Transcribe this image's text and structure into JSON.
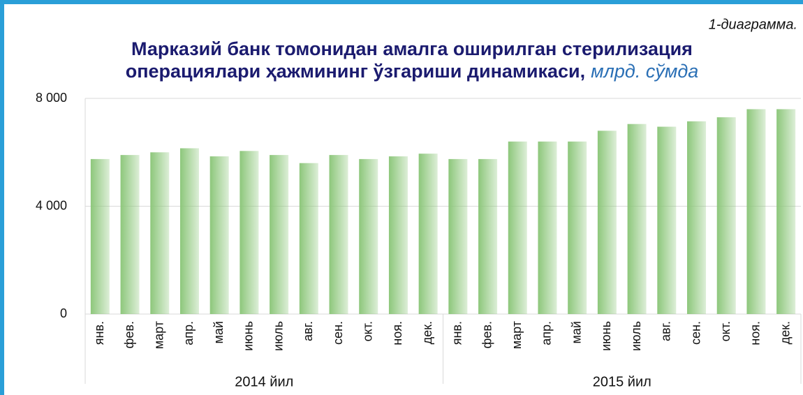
{
  "chart_data": {
    "type": "bar",
    "caption": "1-диаграмма.",
    "title": [
      "Марказий банк томонидан амалга оширилган стерилизация",
      "операциялари ҳажмининг ўзгариши динамикаси,"
    ],
    "unit": "млрд. сўмда",
    "categories": [
      "янв.",
      "фев.",
      "март",
      "апр.",
      "май",
      "июнь",
      "июль",
      "авг.",
      "сен.",
      "окт.",
      "ноя.",
      "дек.",
      "янв.",
      "фев.",
      "март",
      "апр.",
      "май",
      "июнь",
      "июль",
      "авг.",
      "сен.",
      "окт.",
      "ноя.",
      "дек."
    ],
    "x_groups": [
      "2014 йил",
      "2015 йил"
    ],
    "values": [
      5750,
      5900,
      6000,
      6150,
      5850,
      6050,
      5900,
      5600,
      5900,
      5750,
      5850,
      5950,
      5750,
      5750,
      6400,
      6400,
      6400,
      6800,
      7050,
      6950,
      7150,
      7300,
      7600,
      7600
    ],
    "color": "#8dc77b",
    "ylim": [
      0,
      8000
    ],
    "yticks": [
      {
        "value": 0,
        "label": "0"
      },
      {
        "value": 4000,
        "label": "4 000"
      },
      {
        "value": 8000,
        "label": "8 000"
      }
    ],
    "grid": true
  }
}
